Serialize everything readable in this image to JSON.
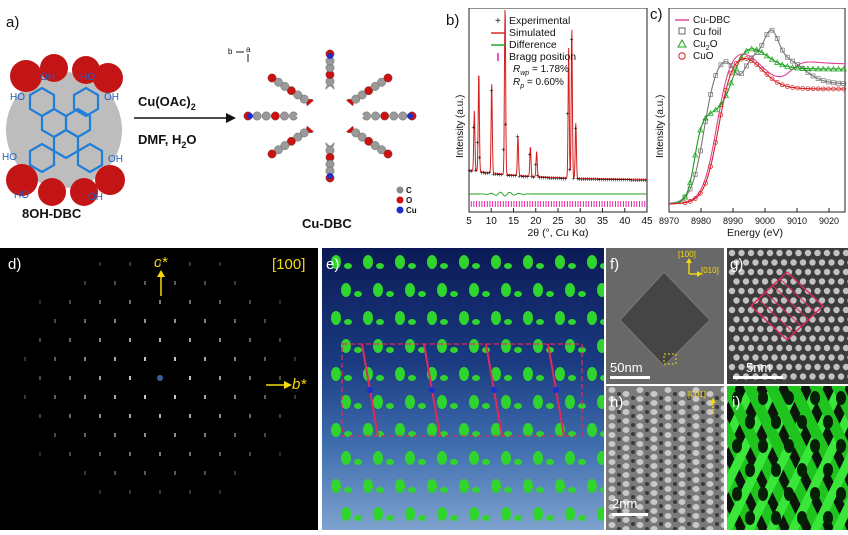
{
  "panel_labels": {
    "a": "a)",
    "b": "b)",
    "c": "c)",
    "d": "d)",
    "e": "e)",
    "f": "f)",
    "g": "g)",
    "h": "h)",
    "i": "i)"
  },
  "panel_a": {
    "reagent_main": "Cu(OAc)",
    "reagent_sub": "2",
    "solvent_main": "DMF, H",
    "solvent_sub": "2",
    "solvent_tail": "O",
    "monomer_name": "8OH-DBC",
    "product_name": "Cu-DBC",
    "hydroxyl": "HO",
    "hydroxyl_r": "OH",
    "axis_a": "a",
    "axis_b": "b",
    "legend": [
      {
        "label": "C",
        "color": "#8a8a8a"
      },
      {
        "label": "O",
        "color": "#cc1111"
      },
      {
        "label": "Cu",
        "color": "#1a2fd0"
      }
    ]
  },
  "panel_b": {
    "legend": [
      "Experimental",
      "Simulated",
      "Difference",
      "Bragg position"
    ],
    "rwp_label": "R",
    "rwp_sub": "wp",
    "rwp_value": " = 1.78%",
    "rp_label": "R",
    "rp_sub": "p",
    "rp_value": " = 0.60%",
    "ylabel": "Intensity (a.u.)",
    "xlabel": "2θ (°, Cu Kα)",
    "xticks": [
      "5",
      "10",
      "15",
      "20",
      "25",
      "30",
      "35",
      "40",
      "45"
    ]
  },
  "panel_c": {
    "legend": [
      "Cu-DBC",
      "Cu foil",
      "Cu2O",
      "CuO"
    ],
    "legend_main": [
      "Cu-DBC",
      "Cu foil",
      "Cu",
      "CuO"
    ],
    "legend_sub": [
      "",
      "",
      "2",
      ""
    ],
    "legend_tail": [
      "",
      "",
      "O",
      ""
    ],
    "ylabel": "Intensity (a.u.)",
    "xlabel": "Energy (eV)",
    "xticks": [
      "8970",
      "8980",
      "8990",
      "9000",
      "9010",
      "9020"
    ]
  },
  "panel_d": {
    "zone": "[100]",
    "c_star": "c*",
    "b_star": "b*"
  },
  "panel_f": {
    "dir1": "[100]",
    "dir2": "[010]",
    "scale": "50nm"
  },
  "panel_g": {
    "scale": "5nm"
  },
  "panel_h": {
    "dir": "[001]",
    "scale": "2nm"
  },
  "colors": {
    "yellow": "#f5d90a",
    "sim_red": "#d42020",
    "diff_green": "#18a018",
    "bragg_magenta": "#e0109a",
    "cu_dbc_pink": "#e0409a"
  }
}
